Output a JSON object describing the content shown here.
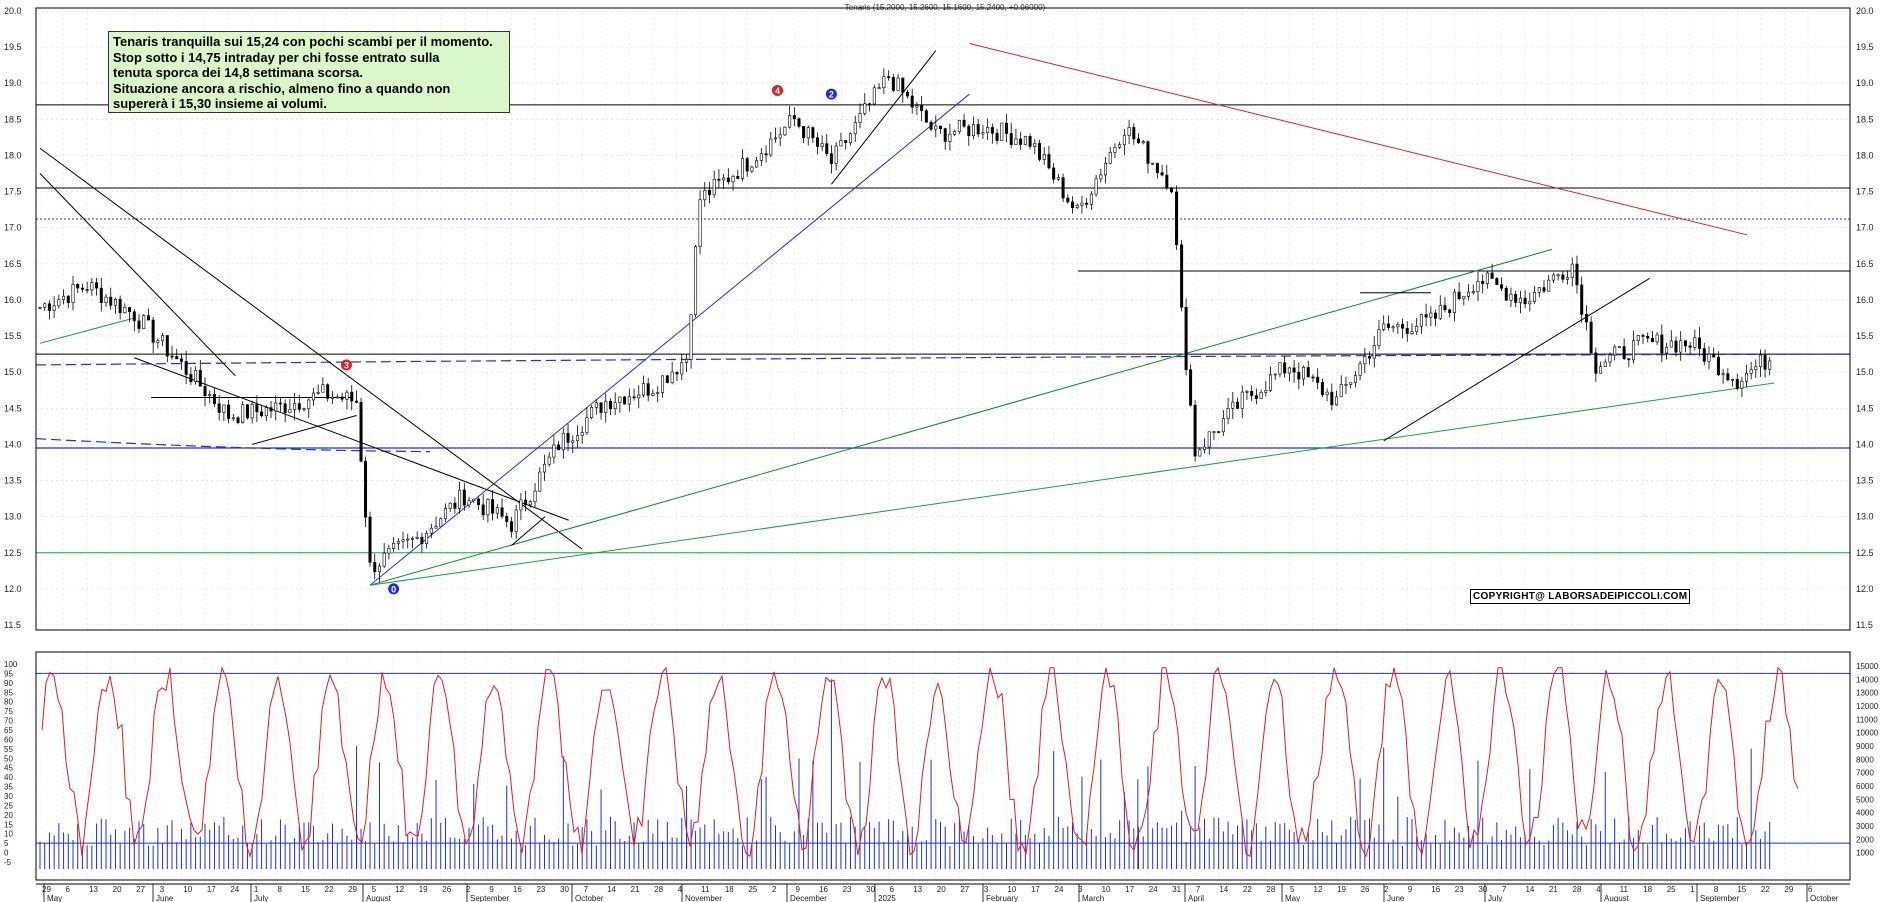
{
  "chart_data": {
    "type": "candlestick",
    "title": "Tenaris (15.2000, 15.2600, 15.1600, 15.2400, +0.06000)",
    "price_axis": {
      "ticks": [
        "20.0",
        "19.5",
        "19.0",
        "18.5",
        "18.0",
        "17.5",
        "17.0",
        "16.5",
        "16.0",
        "15.5",
        "15.0",
        "14.5",
        "14.0",
        "13.5",
        "13.0",
        "12.5",
        "12.0",
        "11.5"
      ],
      "ylim": [
        11.3,
        20.1
      ]
    },
    "oscillator_axis": {
      "ticks": [
        "100",
        "95",
        "90",
        "85",
        "80",
        "75",
        "70",
        "65",
        "60",
        "55",
        "50",
        "45",
        "40",
        "35",
        "30",
        "25",
        "20",
        "15",
        "10",
        "5",
        "0",
        "-5"
      ]
    },
    "volume_axis": {
      "ticks": [
        "15000",
        "14000",
        "13000",
        "12000",
        "11000",
        "10000",
        "9000",
        "8000",
        "7000",
        "6000",
        "5000",
        "4000",
        "3000",
        "2000",
        "1000"
      ]
    },
    "x_axis": {
      "day_labels": [
        "29",
        "6",
        "13",
        "20",
        "27",
        "3",
        "10",
        "17",
        "24",
        "1",
        "8",
        "15",
        "22",
        "29",
        "5",
        "12",
        "19",
        "26",
        "2",
        "9",
        "16",
        "23",
        "30",
        "7",
        "14",
        "21",
        "28",
        "4",
        "11",
        "18",
        "25",
        "2",
        "9",
        "16",
        "23",
        "30",
        "6",
        "13",
        "20",
        "27",
        "3",
        "10",
        "17",
        "24",
        "3",
        "10",
        "17",
        "24",
        "31",
        "7",
        "14",
        "22",
        "28",
        "5",
        "12",
        "19",
        "26",
        "2",
        "9",
        "16",
        "23",
        "30",
        "7",
        "14",
        "21",
        "28",
        "4",
        "11",
        "18",
        "25",
        "1",
        "8",
        "15",
        "22",
        "29",
        "6"
      ],
      "month_labels": [
        "May",
        "June",
        "July",
        "August",
        "September",
        "October",
        "November",
        "December",
        "2025",
        "February",
        "March",
        "April",
        "May",
        "June",
        "July",
        "August",
        "September",
        "October"
      ]
    },
    "close_series": [
      {
        "date": "2024-04-29",
        "close": 15.9
      },
      {
        "date": "2024-05-13",
        "close": 16.2
      },
      {
        "date": "2024-05-27",
        "close": 15.8
      },
      {
        "date": "2024-06-10",
        "close": 15.1
      },
      {
        "date": "2024-06-24",
        "close": 14.4
      },
      {
        "date": "2024-07-08",
        "close": 14.5
      },
      {
        "date": "2024-07-22",
        "close": 14.7
      },
      {
        "date": "2024-08-01",
        "close": 14.6
      },
      {
        "date": "2024-08-05",
        "close": 12.3
      },
      {
        "date": "2024-08-19",
        "close": 12.7
      },
      {
        "date": "2024-09-02",
        "close": 13.3
      },
      {
        "date": "2024-09-16",
        "close": 12.9
      },
      {
        "date": "2024-09-30",
        "close": 14.0
      },
      {
        "date": "2024-10-14",
        "close": 14.6
      },
      {
        "date": "2024-10-28",
        "close": 14.8
      },
      {
        "date": "2024-11-07",
        "close": 15.2
      },
      {
        "date": "2024-11-11",
        "close": 17.4
      },
      {
        "date": "2024-11-25",
        "close": 17.9
      },
      {
        "date": "2024-12-09",
        "close": 18.5
      },
      {
        "date": "2024-12-20",
        "close": 17.9
      },
      {
        "date": "2025-01-06",
        "close": 19.1
      },
      {
        "date": "2025-01-20",
        "close": 18.3
      },
      {
        "date": "2025-02-03",
        "close": 18.4
      },
      {
        "date": "2025-02-17",
        "close": 18.2
      },
      {
        "date": "2025-03-03",
        "close": 17.2
      },
      {
        "date": "2025-03-17",
        "close": 18.4
      },
      {
        "date": "2025-03-31",
        "close": 17.6
      },
      {
        "date": "2025-04-03",
        "close": 15.8
      },
      {
        "date": "2025-04-07",
        "close": 13.9
      },
      {
        "date": "2025-04-21",
        "close": 14.6
      },
      {
        "date": "2025-05-05",
        "close": 15.1
      },
      {
        "date": "2025-05-19",
        "close": 14.6
      },
      {
        "date": "2025-06-02",
        "close": 15.6
      },
      {
        "date": "2025-06-16",
        "close": 15.7
      },
      {
        "date": "2025-06-30",
        "close": 16.3
      },
      {
        "date": "2025-07-14",
        "close": 16.0
      },
      {
        "date": "2025-07-28",
        "close": 16.5
      },
      {
        "date": "2025-08-04",
        "close": 15.1
      },
      {
        "date": "2025-08-18",
        "close": 15.4
      },
      {
        "date": "2025-09-01",
        "close": 15.4
      },
      {
        "date": "2025-09-15",
        "close": 14.9
      },
      {
        "date": "2025-09-26",
        "close": 15.24
      }
    ],
    "horizontal_levels": [
      18.7,
      17.55,
      17.12,
      16.4,
      15.25,
      13.95,
      12.5
    ],
    "wave_markers": [
      {
        "label": "0",
        "color": "#1f2fd8",
        "date": "2024-08-12",
        "price": 12.0
      },
      {
        "label": "3",
        "color": "#e02020",
        "date": "2024-07-29",
        "price": 15.1
      },
      {
        "label": "4",
        "color": "#e02020",
        "date": "2024-12-04",
        "price": 18.9
      },
      {
        "label": "2",
        "color": "#1f2fd8",
        "date": "2024-12-20",
        "price": 18.85
      }
    ],
    "annotations": [
      "Tenaris tranquilla sui 15,24 con pochi scambi per il momento.",
      "Stop sotto i 14,75 intraday per chi fosse entrato sulla",
      "tenuta sporca dei 14,8 settimana scorsa.",
      "Situazione ancora a rischio, almeno fino a quando non",
      "supererà i 15,30 insieme ai volumi."
    ],
    "copyright": "COPYRIGHT@ LABORSADEIPICCOLI.COM",
    "colors": {
      "candle": "#000000",
      "oscillator": "#e02020",
      "volume": "#2030d0",
      "support_green": "#20a040",
      "resistance_red": "#e02020",
      "level_blue": "#2030d0",
      "note_background": "#d9f7c9"
    }
  }
}
